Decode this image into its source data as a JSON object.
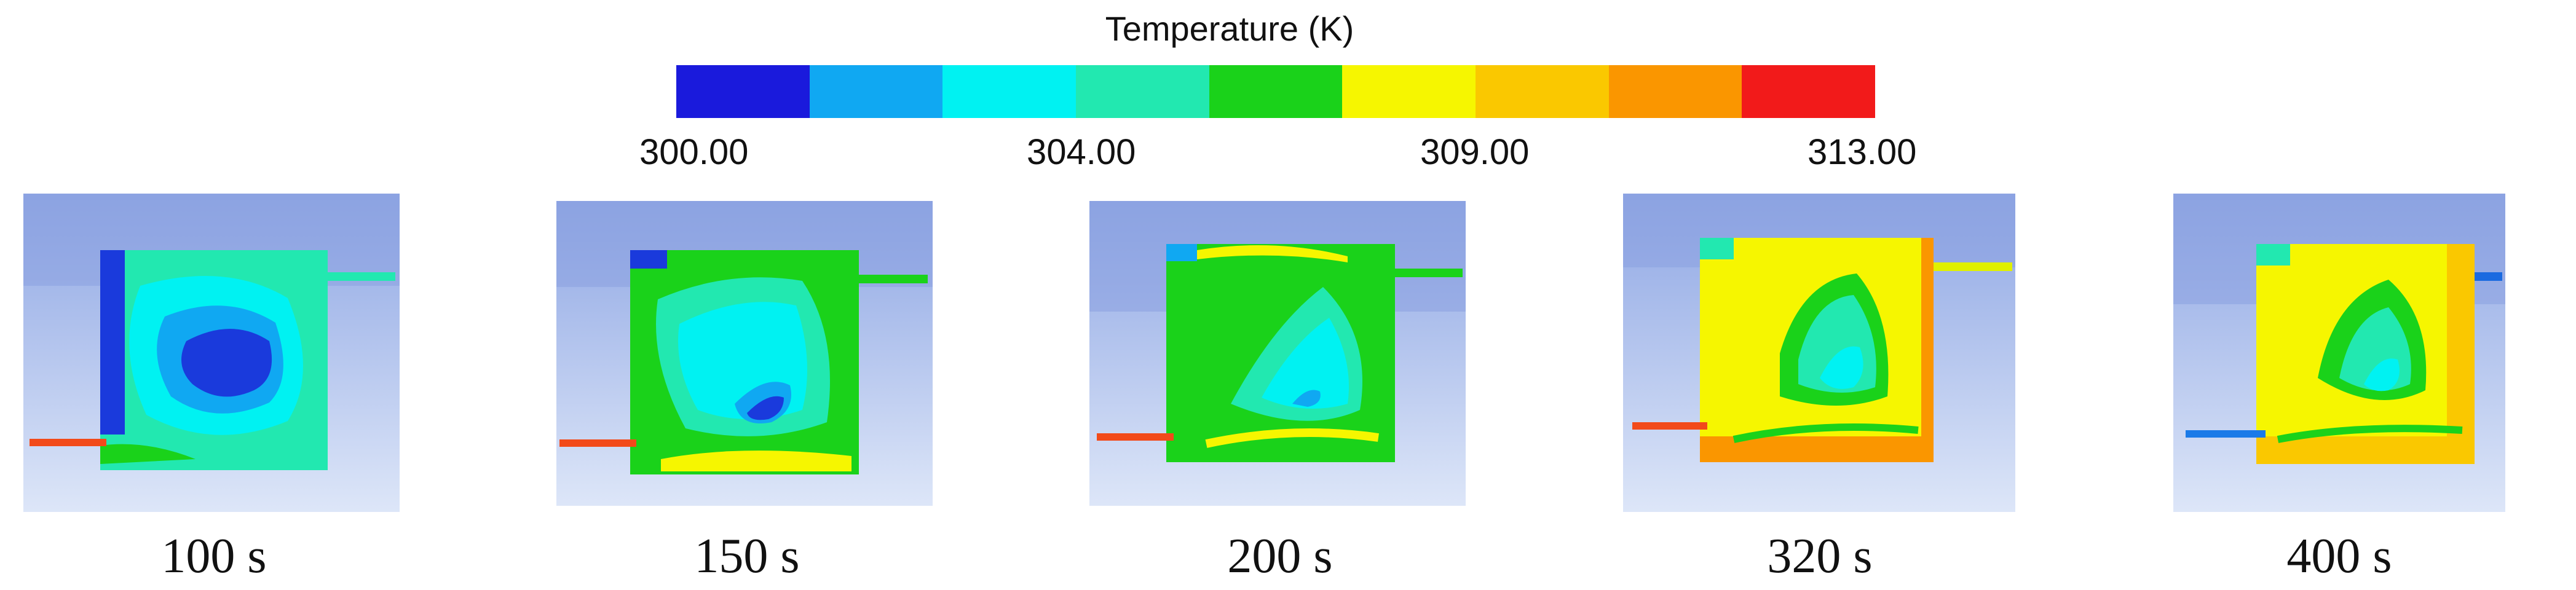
{
  "legend": {
    "title": "Temperature (K)",
    "colors": [
      "#1a1adc",
      "#10a8f2",
      "#00f2f2",
      "#22e8b0",
      "#1ad21a",
      "#f6f600",
      "#fac800",
      "#fa9600",
      "#f21a1a"
    ],
    "ticks": [
      "300.00",
      "304.00",
      "309.00",
      "313.00"
    ]
  },
  "panels": [
    {
      "time_label": "100 s"
    },
    {
      "time_label": "150 s"
    },
    {
      "time_label": "200 s"
    },
    {
      "time_label": "320 s"
    },
    {
      "time_label": "400 s"
    }
  ]
}
